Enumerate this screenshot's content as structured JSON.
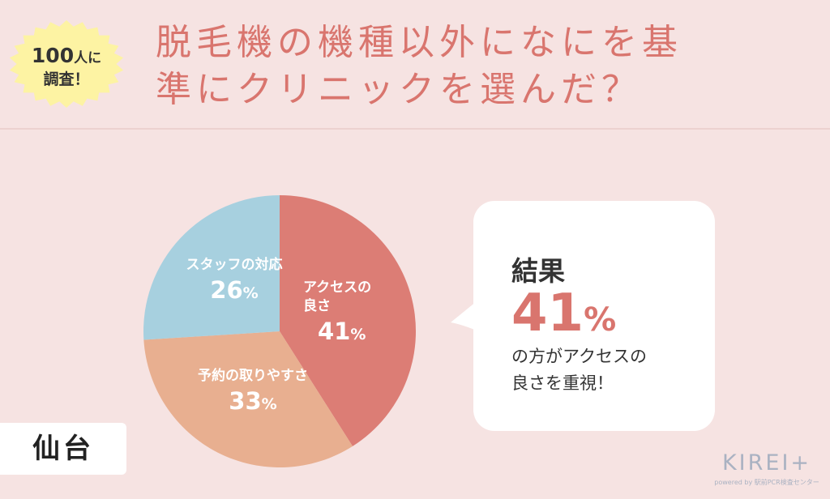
{
  "badge": {
    "count": "100",
    "suffix": "人に",
    "line2": "調査！"
  },
  "title": {
    "line1": "脱毛機の機種以外になにを基",
    "line2": "準にクリニックを選んだ？"
  },
  "chart_data": {
    "type": "pie",
    "title": "",
    "slices": [
      {
        "label": "アクセスの良さ",
        "label_lines": [
          "アクセスの",
          "良さ"
        ],
        "value": 41,
        "color": "#dc7d75"
      },
      {
        "label": "予約の取りやすさ",
        "label_lines": [
          "予約の取りやすさ"
        ],
        "value": 33,
        "color": "#e8af90"
      },
      {
        "label": "スタッフの対応",
        "label_lines": [
          "スタッフの対応"
        ],
        "value": 26,
        "color": "#a7d0df"
      }
    ],
    "unit": "%"
  },
  "result": {
    "title": "結果",
    "value": "41",
    "unit": "%",
    "desc_line1": "の方がアクセスの",
    "desc_line2": "良さを重視！"
  },
  "city": "仙台",
  "logo": {
    "name": "KIREI+",
    "sub": "powered by 駅前PCR検査センター"
  },
  "colors": {
    "accent": "#d9756e",
    "background": "#f6e3e2",
    "badge": "#fdf3a3"
  }
}
